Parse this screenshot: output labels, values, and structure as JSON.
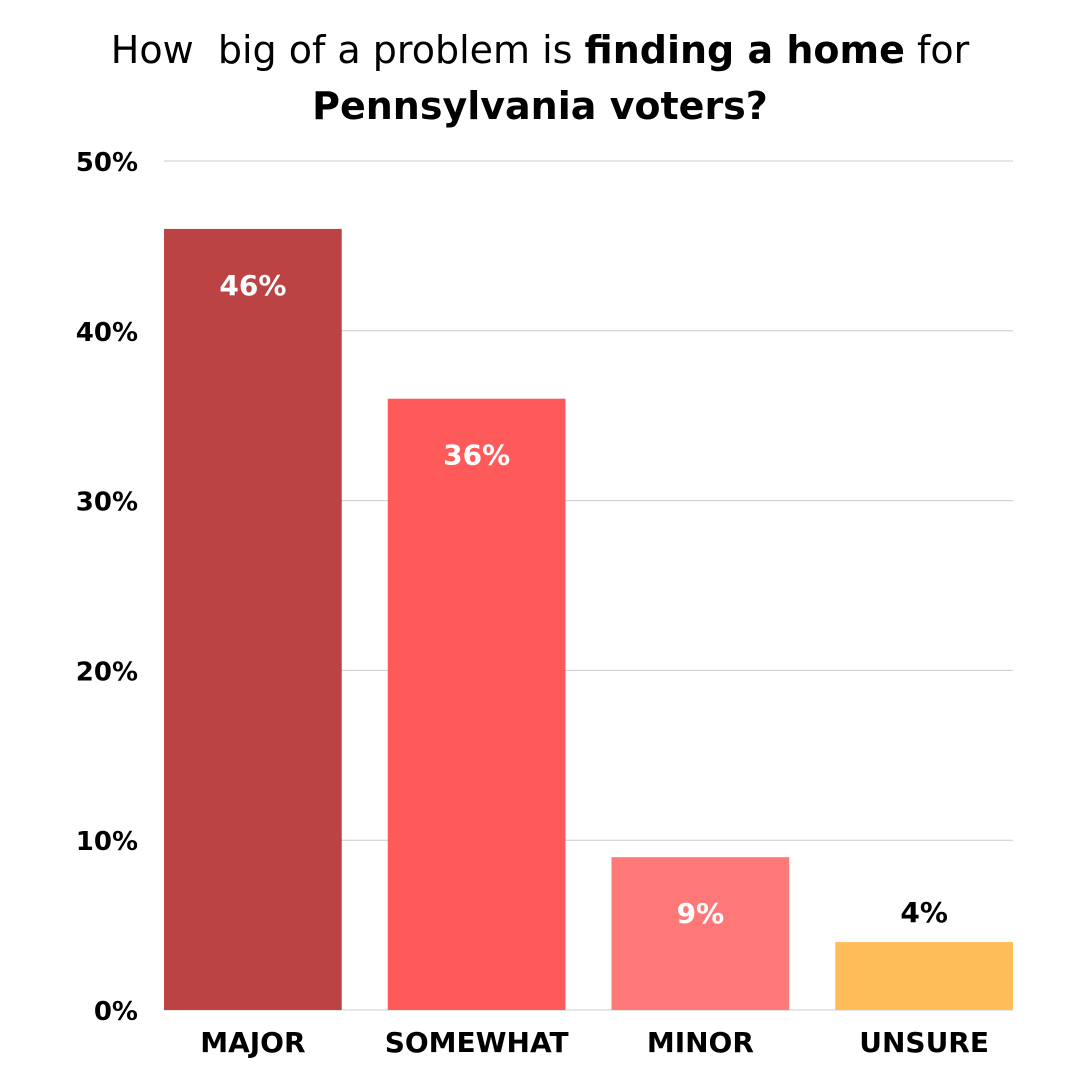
{
  "title": {
    "line1_part1": "How  big of a problem is ",
    "line1_bold": "finding a home",
    "line1_part2": " for",
    "line2_bold": "Pennsylvania voters?"
  },
  "chart_data": {
    "type": "bar",
    "title": "How  big of a problem is finding a home for Pennsylvania voters?",
    "categories": [
      "MAJOR",
      "SOMEWHAT",
      "MINOR",
      "UNSURE"
    ],
    "values": [
      46,
      36,
      9,
      4
    ],
    "data_labels": [
      "46%",
      "36%",
      "9%",
      "4%"
    ],
    "bar_colors": [
      "#bc4343",
      "#ff5a5a",
      "#ff7878",
      "#ffbd59"
    ],
    "label_colors": [
      "#ffffff",
      "#ffffff",
      "#ffffff",
      "#000000"
    ],
    "label_inside": [
      true,
      true,
      true,
      false
    ],
    "ylim": [
      0,
      50
    ],
    "yticks": [
      0,
      10,
      20,
      30,
      40,
      50
    ],
    "ytick_labels": [
      "0%",
      "10%",
      "20%",
      "30%",
      "40%",
      "50%"
    ],
    "grid": true,
    "gridline_color": "#cccccc",
    "xlabel": "",
    "ylabel": ""
  }
}
